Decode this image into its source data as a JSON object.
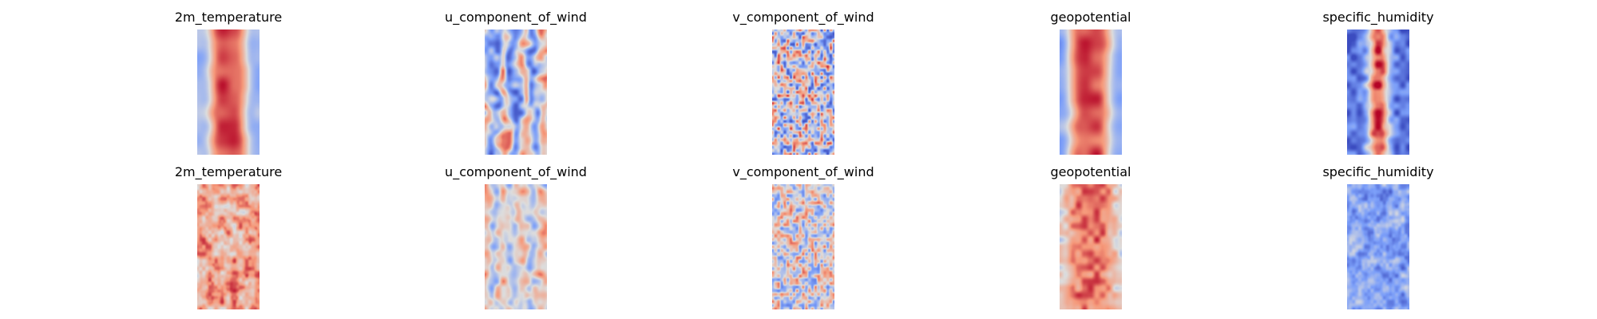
{
  "rows": [
    {
      "panels": [
        {
          "title": "2m_temperature",
          "colormap": "coolwarm",
          "pattern": "warm-core"
        },
        {
          "title": "u_component_of_wind",
          "colormap": "coolwarm",
          "pattern": "streaks"
        },
        {
          "title": "v_component_of_wind",
          "colormap": "coolwarm",
          "pattern": "speckle"
        },
        {
          "title": "geopotential",
          "colormap": "coolwarm",
          "pattern": "warm-core-wide"
        },
        {
          "title": "specific_humidity",
          "colormap": "coolwarm",
          "pattern": "narrow-core"
        }
      ]
    },
    {
      "panels": [
        {
          "title": "2m_temperature",
          "colormap": "coolwarm",
          "pattern": "warm-noisy"
        },
        {
          "title": "u_component_of_wind",
          "colormap": "coolwarm",
          "pattern": "streaks-faint"
        },
        {
          "title": "v_component_of_wind",
          "colormap": "coolwarm",
          "pattern": "speckle-faint"
        },
        {
          "title": "geopotential",
          "colormap": "coolwarm",
          "pattern": "warm-noisy-strong"
        },
        {
          "title": "specific_humidity",
          "colormap": "coolwarm",
          "pattern": "cool-noisy"
        }
      ]
    }
  ]
}
